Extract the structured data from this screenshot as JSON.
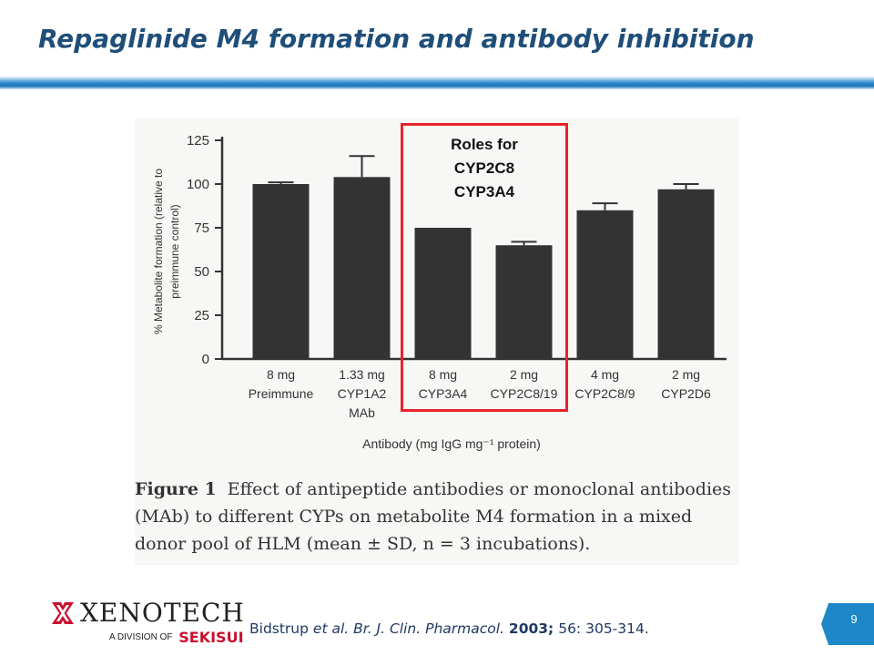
{
  "slide": {
    "title": "Repaglinide  M4 formation and antibody inhibition",
    "page_number": "9"
  },
  "highlight": {
    "lines": [
      "Roles for",
      "CYP2C8",
      "CYP3A4"
    ],
    "color": "#e8232a"
  },
  "caption": {
    "label": "Figure 1",
    "text": "Effect of antipeptide antibodies or monoclonal antibodies (MAb) to different CYPs on metabolite M4 formation in a mixed donor pool of HLM (mean ± SD, n = 3 incubations)."
  },
  "reference": {
    "authors": "Bidstrup",
    "etal": "et al.",
    "journal": "Br. J. Clin. Pharmacol.",
    "year": "2003;",
    "volume": "56:",
    "pages": "305-314."
  },
  "logo": {
    "name": "XENOTECH",
    "division_prefix": "A DIVISION OF",
    "parent": "SEKISUI"
  },
  "chart_data": {
    "type": "bar",
    "categories": [
      [
        "8 mg",
        "Preimmune"
      ],
      [
        "1.33 mg",
        "CYP1A2",
        "MAb"
      ],
      [
        "8 mg",
        "CYP3A4"
      ],
      [
        "2 mg",
        "CYP2C8/19"
      ],
      [
        "4 mg",
        "CYP2C8/9"
      ],
      [
        "2 mg",
        "CYP2D6"
      ]
    ],
    "values": [
      100,
      104,
      75,
      65,
      85,
      97
    ],
    "errors": [
      1,
      12,
      0,
      2,
      4,
      3
    ],
    "ylim": [
      0,
      125
    ],
    "yticks": [
      0,
      25,
      50,
      75,
      100,
      125
    ],
    "xlabel": "Antibody (mg IgG mg⁻¹ protein)",
    "ylabel": "% Metabolite formation (relative to preimmune control)",
    "bar_color": "#333333",
    "grid": false
  }
}
